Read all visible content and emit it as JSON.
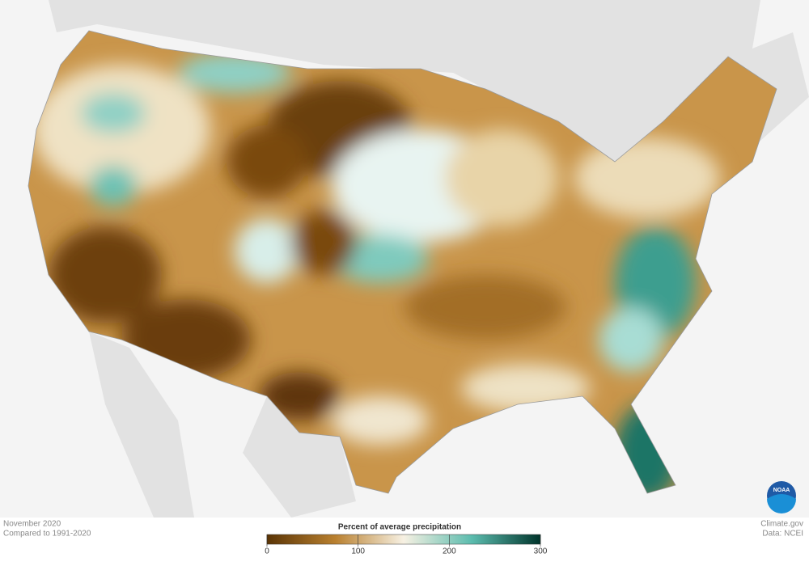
{
  "map": {
    "date": "November 2020",
    "baseline": "Compared to 1991-2020",
    "legend": {
      "title": "Percent of average precipitation",
      "lim": [
        0,
        300
      ],
      "ticks": [
        0,
        100,
        200,
        300
      ],
      "colors": [
        "#5a3405",
        "#b9802f",
        "#f7f1e3",
        "#5bbcae",
        "#00342b"
      ]
    },
    "source": "Climate.gov",
    "data_credit": "Data: NCEI",
    "logo": "NOAA"
  }
}
